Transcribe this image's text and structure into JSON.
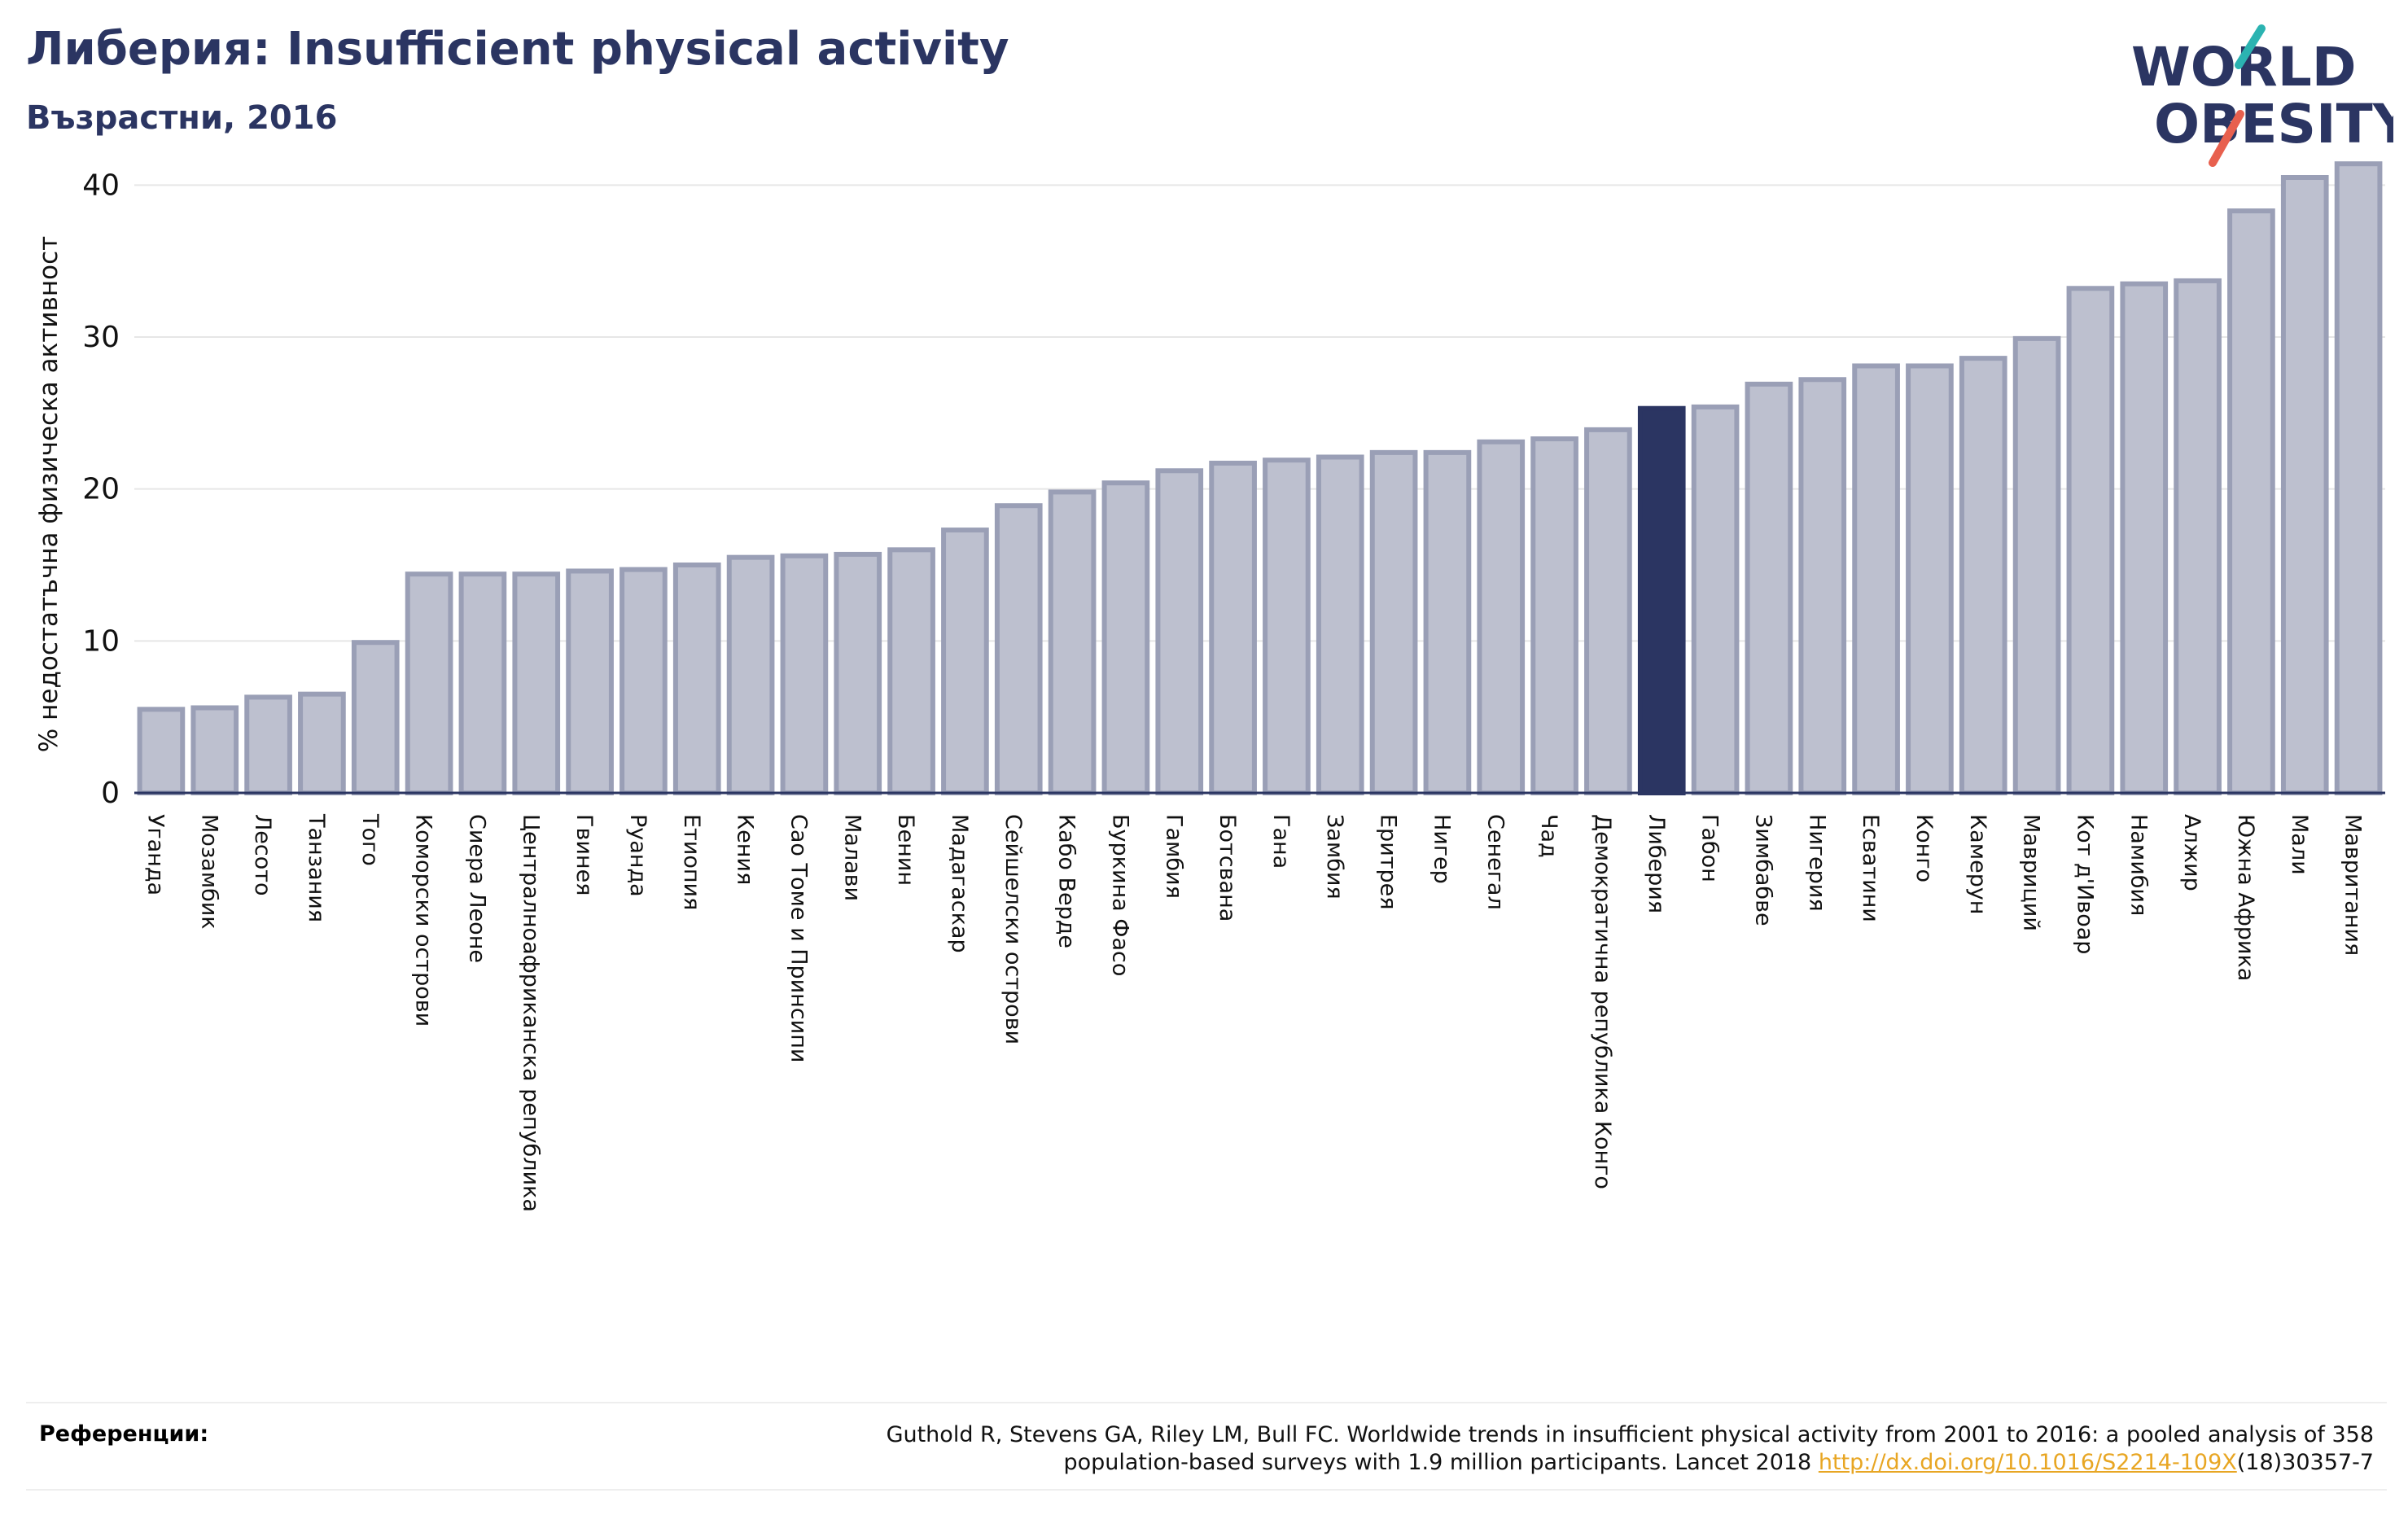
{
  "title": "Либерия: Insufficient physical activity",
  "subtitle": "Възрастни, 2016",
  "logo": {
    "line1": "WORLD",
    "line2": "OBESITY"
  },
  "references": {
    "label": "Референции:",
    "text_line1": "Guthold R, Stevens GA, Riley LM, Bull FC. Worldwide trends in insufficient physical activity from 2001 to 2016: a pooled analysis of 358",
    "text_line2_pre": "population-based surveys with 1.9 million participants. Lancet 2018 ",
    "link": "http://dx.doi.org/10.1016/S2214-109X",
    "text_line2_post": "(18)30357-7"
  },
  "chart_data": {
    "type": "bar",
    "title": "Либерия: Insufficient physical activity",
    "subtitle": "Възрастни, 2016",
    "ylabel": "% недостатъчна физическа активност",
    "xlabel": "",
    "ylim": [
      0,
      42
    ],
    "yticks": [
      0,
      10,
      20,
      30,
      40
    ],
    "grid": true,
    "highlight": "Либерия",
    "colors": {
      "bar": "#bdc0cf",
      "bar_edge": "#9a9fb6",
      "highlight": "#2b3562",
      "grid": "#e6e6e6"
    },
    "categories": [
      "Уганда",
      "Мозамбик",
      "Лесото",
      "Танзания",
      "Того",
      "Коморски острови",
      "Сиера Леоне",
      "Централноафриканска република",
      "Гвинея",
      "Руанда",
      "Етиопия",
      "Кения",
      "Сао Томе и Принсипи",
      "Малави",
      "Бенин",
      "Мадагаскар",
      "Сейшелски острови",
      "Кабо Верде",
      "Буркина Фасо",
      "Гамбия",
      "Ботсвана",
      "Гана",
      "Замбия",
      "Еритрея",
      "Нигер",
      "Сенегал",
      "Чад",
      "Демократична република Конго",
      "Либерия",
      "Габон",
      "Зимбабве",
      "Нигерия",
      "Есватини",
      "Конго",
      "Камерун",
      "Мавриций",
      "Кот д'Ивоар",
      "Намибия",
      "Алжир",
      "Южна Африка",
      "Мали",
      "Мавритания"
    ],
    "values": [
      5.5,
      5.6,
      6.3,
      6.5,
      9.9,
      14.4,
      14.4,
      14.4,
      14.6,
      14.7,
      15.0,
      15.5,
      15.6,
      15.7,
      16.0,
      17.3,
      18.9,
      19.8,
      20.4,
      21.2,
      21.7,
      21.9,
      22.1,
      22.4,
      22.4,
      23.1,
      23.3,
      23.9,
      25.3,
      25.4,
      26.9,
      27.2,
      28.1,
      28.1,
      28.6,
      29.9,
      33.2,
      33.5,
      33.7,
      38.3,
      40.5,
      41.4
    ]
  }
}
